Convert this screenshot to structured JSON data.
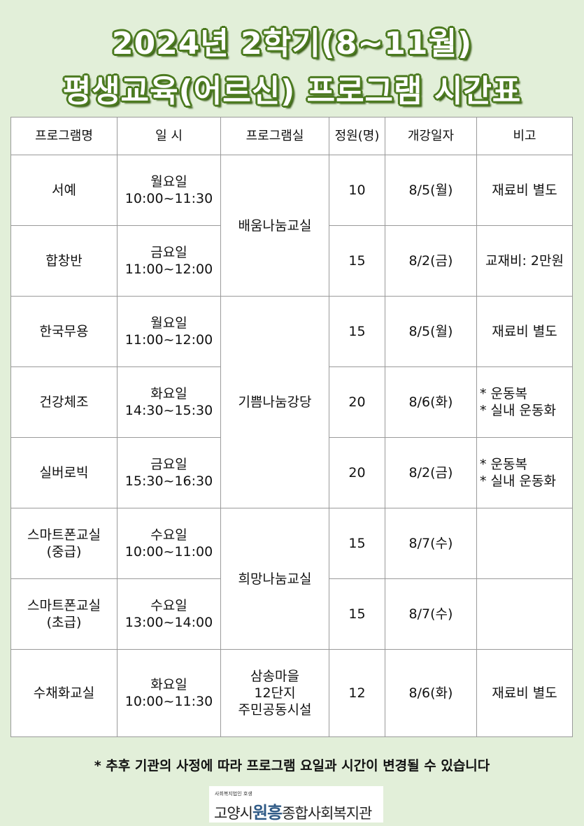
{
  "title": {
    "line1": "2024년 2학기(8~11월)",
    "line2": "평생교육(어르신) 프로그램 시간표"
  },
  "table": {
    "headers": [
      "프로그램명",
      "일 시",
      "프로그램실",
      "정원(명)",
      "개강일자",
      "비고"
    ],
    "rows": [
      {
        "name": "서예",
        "day": "월요일",
        "time": "10:00~11:30",
        "capacity": "10",
        "start": "8/5(월)",
        "note": "재료비 별도"
      },
      {
        "name": "합창반",
        "day": "금요일",
        "time": "11:00~12:00",
        "capacity": "15",
        "start": "8/2(금)",
        "note": "교재비: 2만원"
      },
      {
        "name": "한국무용",
        "day": "월요일",
        "time": "11:00~12:00",
        "capacity": "15",
        "start": "8/5(월)",
        "note": "재료비 별도"
      },
      {
        "name": "건강체조",
        "day": "화요일",
        "time": "14:30~15:30",
        "capacity": "20",
        "start": "8/6(화)",
        "note1": "* 운동복",
        "note2": "* 실내 운동화"
      },
      {
        "name": "실버로빅",
        "day": "금요일",
        "time": "15:30~16:30",
        "capacity": "20",
        "start": "8/2(금)",
        "note1": "* 운동복",
        "note2": "* 실내 운동화"
      },
      {
        "name1": "스마트폰교실",
        "name2": "(중급)",
        "day": "수요일",
        "time": "10:00~11:00",
        "capacity": "15",
        "start": "8/7(수)",
        "note": ""
      },
      {
        "name1": "스마트폰교실",
        "name2": "(초급)",
        "day": "수요일",
        "time": "13:00~14:00",
        "capacity": "15",
        "start": "8/7(수)",
        "note": ""
      },
      {
        "name": "수채화교실",
        "day": "화요일",
        "time": "10:00~11:30",
        "capacity": "12",
        "start": "8/6(화)",
        "note": "재료비 별도"
      }
    ],
    "rooms": [
      {
        "name": "배움나눔교실"
      },
      {
        "name": "기쁨나눔강당"
      },
      {
        "name": "희망나눔교실"
      },
      {
        "line1": "삼송마을",
        "line2": "12단지",
        "line3": "주민공동시설"
      }
    ]
  },
  "footer_note": "* 추후 기관의 사정에 따라 프로그램 요일과 시간이 변경될 수 있습니다",
  "logo": {
    "small": "사회복지법인 호생",
    "text_a": "고양시",
    "text_b": "원흥",
    "text_c": "종합사회복지관"
  },
  "colors": {
    "background": "#e2efd9",
    "title_outline": "#4b7a1f"
  }
}
